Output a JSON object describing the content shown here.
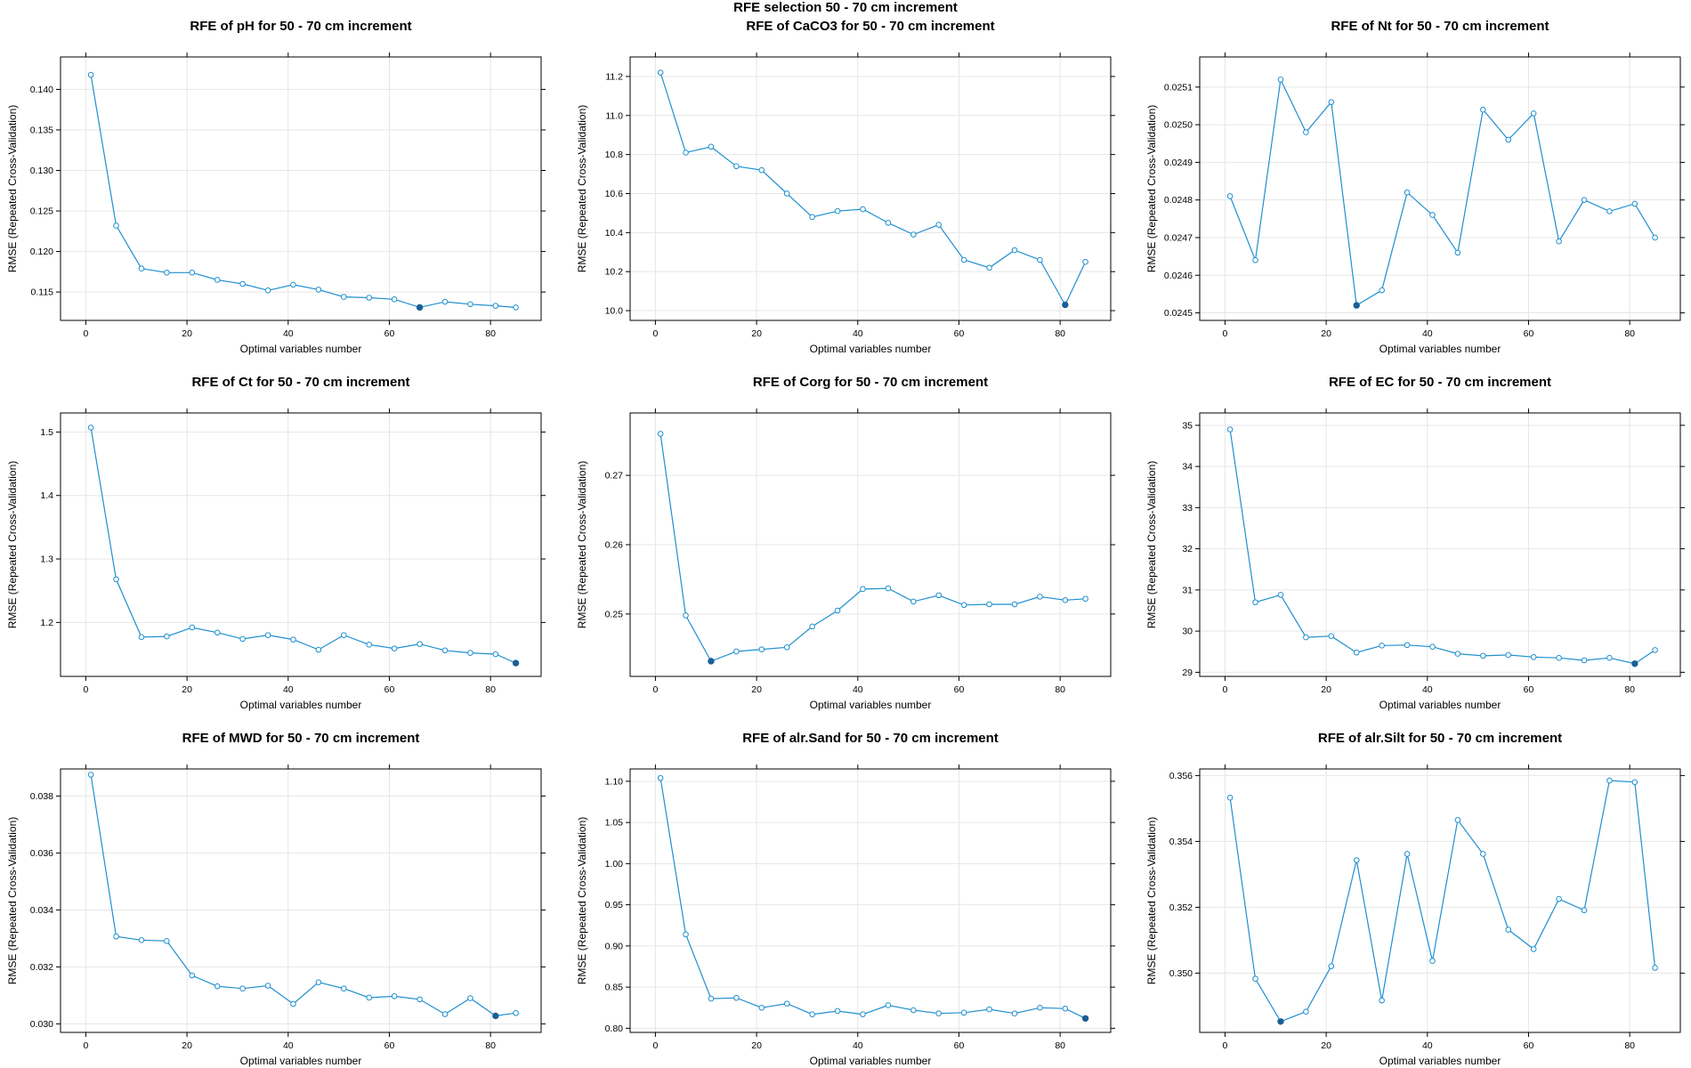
{
  "suptitle": "RFE selection 50 - 70 cm increment",
  "colors": {
    "line": "#1f8fcf",
    "best": "#1a5f96",
    "grid": "#e6e6e6",
    "frame": "#000000"
  },
  "chart_data": [
    {
      "type": "line",
      "title": "RFE of pH for 50 - 70 cm increment",
      "xlabel": "Optimal variables number",
      "ylabel": "RMSE (Repeated Cross-Validation)",
      "xlim": [
        -5,
        90
      ],
      "ylim": [
        0.1115,
        0.144
      ],
      "xticks": [
        0,
        20,
        40,
        60,
        80
      ],
      "xticklabels": [
        "0",
        "20",
        "40",
        "60",
        "80"
      ],
      "yticks": [
        0.115,
        0.12,
        0.125,
        0.13,
        0.135,
        0.14
      ],
      "yticklabels": [
        "0.115",
        "0.120",
        "0.125",
        "0.130",
        "0.135",
        "0.140"
      ],
      "x": [
        1,
        6,
        11,
        16,
        21,
        26,
        31,
        36,
        41,
        46,
        51,
        56,
        61,
        66,
        71,
        76,
        81,
        85
      ],
      "y": [
        0.1418,
        0.1232,
        0.1179,
        0.1174,
        0.1174,
        0.1165,
        0.116,
        0.1152,
        0.1159,
        0.1153,
        0.1144,
        0.1143,
        0.1141,
        0.1131,
        0.1138,
        0.1135,
        0.1133,
        0.1131
      ],
      "best_index": 13,
      "grid": true
    },
    {
      "type": "line",
      "title": "RFE of CaCO3 for 50 - 70 cm increment",
      "xlabel": "Optimal variables number",
      "ylabel": "RMSE (Repeated Cross-Validation)",
      "xlim": [
        -5,
        90
      ],
      "ylim": [
        9.95,
        11.3
      ],
      "xticks": [
        0,
        20,
        40,
        60,
        80
      ],
      "xticklabels": [
        "0",
        "20",
        "40",
        "60",
        "80"
      ],
      "yticks": [
        10.0,
        10.2,
        10.4,
        10.6,
        10.8,
        11.0,
        11.2
      ],
      "yticklabels": [
        "10.0",
        "10.2",
        "10.4",
        "10.6",
        "10.8",
        "11.0",
        "11.2"
      ],
      "x": [
        1,
        6,
        11,
        16,
        21,
        26,
        31,
        36,
        41,
        46,
        51,
        56,
        61,
        66,
        71,
        76,
        81,
        85
      ],
      "y": [
        11.22,
        10.81,
        10.84,
        10.74,
        10.72,
        10.6,
        10.48,
        10.51,
        10.52,
        10.45,
        10.39,
        10.44,
        10.26,
        10.22,
        10.31,
        10.26,
        10.03,
        10.25
      ],
      "best_index": 16,
      "grid": true
    },
    {
      "type": "line",
      "title": "RFE of Nt for 50 - 70 cm increment",
      "xlabel": "Optimal variables number",
      "ylabel": "RMSE (Repeated Cross-Validation)",
      "xlim": [
        -5,
        90
      ],
      "ylim": [
        0.02448,
        0.02518
      ],
      "xticks": [
        0,
        20,
        40,
        60,
        80
      ],
      "xticklabels": [
        "0",
        "20",
        "40",
        "60",
        "80"
      ],
      "yticks": [
        0.0245,
        0.0246,
        0.0247,
        0.0248,
        0.0249,
        0.025,
        0.0251
      ],
      "yticklabels": [
        "0.0245",
        "0.0246",
        "0.0247",
        "0.0248",
        "0.0249",
        "0.0250",
        "0.0251"
      ],
      "x": [
        1,
        6,
        11,
        16,
        21,
        26,
        31,
        36,
        41,
        46,
        51,
        56,
        61,
        66,
        71,
        76,
        81,
        85
      ],
      "y": [
        0.02481,
        0.02464,
        0.02512,
        0.02498,
        0.02506,
        0.02452,
        0.02456,
        0.02482,
        0.02476,
        0.02466,
        0.02504,
        0.02496,
        0.02503,
        0.02469,
        0.0248,
        0.02477,
        0.02479,
        0.0247
      ],
      "best_index": 5,
      "grid": true
    },
    {
      "type": "line",
      "title": "RFE of Ct for 50 - 70 cm increment",
      "xlabel": "Optimal variables number",
      "ylabel": "RMSE (Repeated Cross-Validation)",
      "xlim": [
        -5,
        90
      ],
      "ylim": [
        1.115,
        1.53
      ],
      "xticks": [
        0,
        20,
        40,
        60,
        80
      ],
      "xticklabels": [
        "0",
        "20",
        "40",
        "60",
        "80"
      ],
      "yticks": [
        1.2,
        1.3,
        1.4,
        1.5
      ],
      "yticklabels": [
        "1.2",
        "1.3",
        "1.4",
        "1.5"
      ],
      "x": [
        1,
        6,
        11,
        16,
        21,
        26,
        31,
        36,
        41,
        46,
        51,
        56,
        61,
        66,
        71,
        76,
        81,
        85
      ],
      "y": [
        1.507,
        1.268,
        1.177,
        1.178,
        1.192,
        1.184,
        1.174,
        1.18,
        1.173,
        1.157,
        1.18,
        1.165,
        1.159,
        1.166,
        1.156,
        1.152,
        1.15,
        1.136
      ],
      "best_index": 17,
      "grid": true
    },
    {
      "type": "line",
      "title": "RFE of Corg for 50 - 70 cm increment",
      "xlabel": "Optimal variables number",
      "ylabel": "RMSE (Repeated Cross-Validation)",
      "xlim": [
        -5,
        90
      ],
      "ylim": [
        0.241,
        0.279
      ],
      "xticks": [
        0,
        20,
        40,
        60,
        80
      ],
      "xticklabels": [
        "0",
        "20",
        "40",
        "60",
        "80"
      ],
      "yticks": [
        0.25,
        0.26,
        0.27
      ],
      "yticklabels": [
        "0.25",
        "0.26",
        "0.27"
      ],
      "x": [
        1,
        6,
        11,
        16,
        21,
        26,
        31,
        36,
        41,
        46,
        51,
        56,
        61,
        66,
        71,
        76,
        81,
        85
      ],
      "y": [
        0.276,
        0.2498,
        0.2432,
        0.2446,
        0.2449,
        0.2452,
        0.2482,
        0.2505,
        0.2536,
        0.2537,
        0.2518,
        0.2527,
        0.2513,
        0.2514,
        0.2514,
        0.2525,
        0.252,
        0.2522
      ],
      "best_index": 2,
      "grid": true
    },
    {
      "type": "line",
      "title": "RFE of EC for 50 - 70 cm increment",
      "xlabel": "Optimal variables number",
      "ylabel": "RMSE (Repeated Cross-Validation)",
      "xlim": [
        -5,
        90
      ],
      "ylim": [
        28.9,
        35.3
      ],
      "xticks": [
        0,
        20,
        40,
        60,
        80
      ],
      "xticklabels": [
        "0",
        "20",
        "40",
        "60",
        "80"
      ],
      "yticks": [
        29,
        30,
        31,
        32,
        33,
        34,
        35
      ],
      "yticklabels": [
        "29",
        "30",
        "31",
        "32",
        "33",
        "34",
        "35"
      ],
      "x": [
        1,
        6,
        11,
        16,
        21,
        26,
        31,
        36,
        41,
        46,
        51,
        56,
        61,
        66,
        71,
        76,
        81,
        85
      ],
      "y": [
        34.9,
        30.7,
        30.88,
        29.85,
        29.88,
        29.48,
        29.65,
        29.66,
        29.62,
        29.45,
        29.4,
        29.42,
        29.37,
        29.35,
        29.29,
        29.35,
        29.21,
        29.54
      ],
      "best_index": 16,
      "grid": true
    },
    {
      "type": "line",
      "title": "RFE of MWD for 50 - 70 cm increment",
      "xlabel": "Optimal variables number",
      "ylabel": "RMSE (Repeated Cross-Validation)",
      "xlim": [
        -5,
        90
      ],
      "ylim": [
        0.0297,
        0.03895
      ],
      "xticks": [
        0,
        20,
        40,
        60,
        80
      ],
      "xticklabels": [
        "0",
        "20",
        "40",
        "60",
        "80"
      ],
      "yticks": [
        0.03,
        0.032,
        0.034,
        0.036,
        0.038
      ],
      "yticklabels": [
        "0.030",
        "0.032",
        "0.034",
        "0.036",
        "0.038"
      ],
      "x": [
        1,
        6,
        11,
        16,
        21,
        26,
        31,
        36,
        41,
        46,
        51,
        56,
        61,
        66,
        71,
        76,
        81,
        85
      ],
      "y": [
        0.03875,
        0.03307,
        0.03294,
        0.03291,
        0.0317,
        0.03132,
        0.03124,
        0.03134,
        0.0307,
        0.03146,
        0.03124,
        0.03092,
        0.03097,
        0.03086,
        0.03034,
        0.0309,
        0.03028,
        0.03038
      ],
      "best_index": 16,
      "grid": true
    },
    {
      "type": "line",
      "title": "RFE of alr.Sand for 50 - 70 cm increment",
      "xlabel": "Optimal variables number",
      "ylabel": "RMSE (Repeated Cross-Validation)",
      "xlim": [
        -5,
        90
      ],
      "ylim": [
        0.795,
        1.115
      ],
      "xticks": [
        0,
        20,
        40,
        60,
        80
      ],
      "xticklabels": [
        "0",
        "20",
        "40",
        "60",
        "80"
      ],
      "yticks": [
        0.8,
        0.85,
        0.9,
        0.95,
        1.0,
        1.05,
        1.1
      ],
      "yticklabels": [
        "0.80",
        "0.85",
        "0.90",
        "0.95",
        "1.00",
        "1.05",
        "1.10"
      ],
      "x": [
        1,
        6,
        11,
        16,
        21,
        26,
        31,
        36,
        41,
        46,
        51,
        56,
        61,
        66,
        71,
        76,
        81,
        85
      ],
      "y": [
        1.104,
        0.914,
        0.836,
        0.837,
        0.825,
        0.83,
        0.817,
        0.821,
        0.817,
        0.828,
        0.822,
        0.818,
        0.819,
        0.823,
        0.818,
        0.825,
        0.824,
        0.812
      ],
      "best_index": 17,
      "grid": true
    },
    {
      "type": "line",
      "title": "RFE of alr.Silt for 50 - 70 cm increment",
      "xlabel": "Optimal variables number",
      "ylabel": "RMSE (Repeated Cross-Validation)",
      "xlim": [
        -5,
        90
      ],
      "ylim": [
        0.3482,
        0.3562
      ],
      "xticks": [
        0,
        20,
        40,
        60,
        80
      ],
      "xticklabels": [
        "0",
        "20",
        "40",
        "60",
        "80"
      ],
      "yticks": [
        0.35,
        0.352,
        0.354,
        0.356
      ],
      "yticklabels": [
        "0.350",
        "0.352",
        "0.354",
        "0.356"
      ],
      "x": [
        1,
        6,
        11,
        16,
        21,
        26,
        31,
        36,
        41,
        46,
        51,
        56,
        61,
        66,
        71,
        76,
        81,
        85
      ],
      "y": [
        0.35533,
        0.34983,
        0.34853,
        0.34883,
        0.35021,
        0.35343,
        0.34917,
        0.35362,
        0.35037,
        0.35465,
        0.35362,
        0.35132,
        0.35073,
        0.35225,
        0.35191,
        0.35585,
        0.3558,
        0.35016
      ],
      "best_index": 2,
      "grid": true
    }
  ]
}
